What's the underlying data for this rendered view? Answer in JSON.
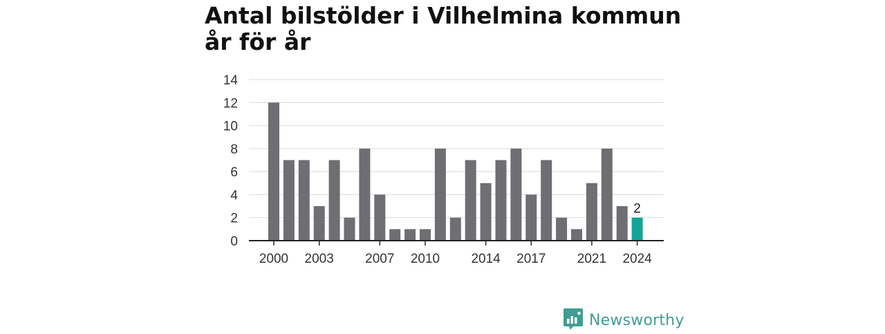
{
  "title": "Antal bilstölder i Vilhelmina kommun år för år",
  "brand": {
    "name": "Newsworthy"
  },
  "colors": {
    "bar": "#6e6e73",
    "highlight": "#12a595",
    "grid": "#d9d9d9",
    "axis": "#222222",
    "brand": "#3f9d93"
  },
  "chart_data": {
    "type": "bar",
    "categories": [
      "2000",
      "2001",
      "2002",
      "2003",
      "2004",
      "2005",
      "2006",
      "2007",
      "2008",
      "2009",
      "2010",
      "2011",
      "2012",
      "2013",
      "2014",
      "2015",
      "2016",
      "2017",
      "2018",
      "2019",
      "2020",
      "2021",
      "2022",
      "2023",
      "2024"
    ],
    "values": [
      12,
      7,
      7,
      3,
      7,
      2,
      8,
      4,
      1,
      1,
      1,
      8,
      2,
      7,
      5,
      7,
      8,
      4,
      7,
      2,
      1,
      5,
      8,
      3,
      2
    ],
    "x_tick_labels": [
      "2000",
      "2003",
      "2007",
      "2010",
      "2014",
      "2017",
      "2021",
      "2024"
    ],
    "y_ticks": [
      0,
      2,
      4,
      6,
      8,
      10,
      12,
      14
    ],
    "ylim": [
      0,
      14
    ],
    "highlight": {
      "category": "2024",
      "label": "2"
    },
    "grid": true,
    "title": "Antal bilstölder i Vilhelmina kommun år för år",
    "xlabel": "",
    "ylabel": ""
  }
}
